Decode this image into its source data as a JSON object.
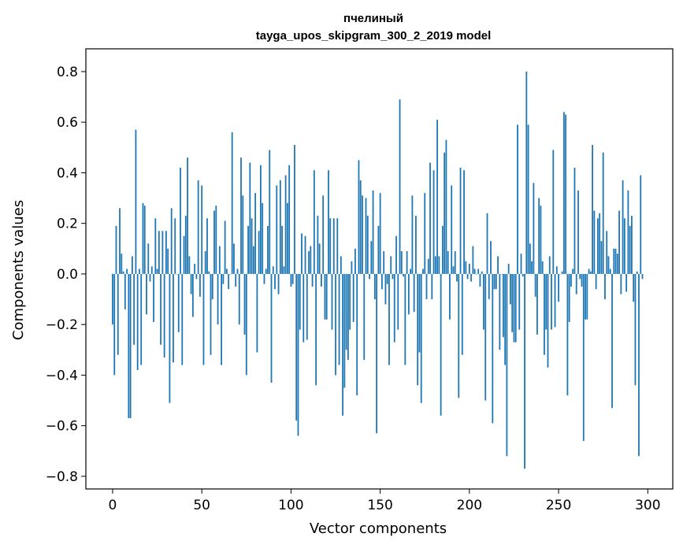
{
  "chart_data": {
    "type": "bar",
    "title_line1": "пчелиный",
    "title_line2": "tayga_upos_skipgram_300_2_2019 model",
    "xlabel": "Vector components",
    "ylabel": "Components values",
    "xlim": [
      -15,
      314
    ],
    "ylim": [
      -0.85,
      0.89
    ],
    "xticks": [
      0,
      50,
      100,
      150,
      200,
      250,
      300
    ],
    "xtick_labels": [
      "0",
      "50",
      "100",
      "150",
      "200",
      "250",
      "300"
    ],
    "yticks": [
      -0.8,
      -0.6,
      -0.4,
      -0.2,
      0.0,
      0.2,
      0.4,
      0.6,
      0.8
    ],
    "ytick_labels": [
      "−0.8",
      "−0.6",
      "−0.4",
      "−0.2",
      "0.0",
      "0.2",
      "0.4",
      "0.6",
      "0.8"
    ],
    "bar_color": "#1f77b4",
    "values": [
      -0.2,
      -0.4,
      0.19,
      -0.32,
      0.26,
      0.08,
      0.01,
      -0.14,
      0.02,
      -0.57,
      -0.57,
      0.07,
      -0.28,
      0.57,
      -0.38,
      0.02,
      -0.36,
      0.28,
      0.27,
      -0.16,
      0.12,
      -0.03,
      0.03,
      -0.19,
      0.22,
      0.02,
      0.17,
      -0.28,
      0.17,
      -0.33,
      0.17,
      0.1,
      -0.51,
      0.26,
      -0.35,
      0.22,
      0.0,
      -0.23,
      0.42,
      -0.36,
      0.15,
      0.23,
      0.46,
      0.07,
      -0.08,
      -0.17,
      0.04,
      -0.02,
      0.37,
      -0.09,
      0.35,
      -0.36,
      0.09,
      0.22,
      0.01,
      -0.32,
      -0.1,
      0.25,
      0.27,
      -0.2,
      0.11,
      -0.36,
      -0.04,
      0.21,
      0.02,
      -0.06,
      0.0,
      0.56,
      0.12,
      -0.05,
      0.02,
      -0.2,
      0.46,
      0.31,
      -0.24,
      -0.4,
      0.19,
      0.44,
      0.22,
      0.11,
      0.32,
      -0.31,
      0.17,
      0.43,
      0.28,
      -0.04,
      0.02,
      0.19,
      0.49,
      -0.43,
      0.03,
      -0.06,
      0.35,
      -0.08,
      0.37,
      0.19,
      0.03,
      0.39,
      0.28,
      0.43,
      -0.05,
      -0.04,
      0.51,
      -0.58,
      -0.64,
      -0.22,
      0.16,
      -0.27,
      0.15,
      -0.26,
      0.09,
      0.11,
      -0.05,
      0.41,
      -0.44,
      0.23,
      0.12,
      -0.05,
      0.31,
      -0.18,
      -0.18,
      0.41,
      0.22,
      -0.22,
      0.22,
      -0.4,
      0.22,
      -0.36,
      0.07,
      -0.56,
      -0.45,
      -0.3,
      -0.34,
      -0.22,
      0.05,
      -0.19,
      0.1,
      -0.48,
      0.45,
      0.37,
      0.31,
      -0.34,
      0.3,
      0.23,
      -0.02,
      0.13,
      0.33,
      -0.1,
      -0.63,
      0.19,
      0.32,
      -0.06,
      0.09,
      -0.12,
      -0.04,
      -0.36,
      0.07,
      -0.02,
      -0.27,
      0.15,
      -0.22,
      0.69,
      0.09,
      -0.01,
      -0.36,
      0.09,
      -0.16,
      0.02,
      0.31,
      -0.15,
      0.23,
      -0.44,
      -0.31,
      -0.51,
      0.02,
      0.32,
      -0.1,
      0.06,
      0.44,
      -0.1,
      0.41,
      0.07,
      0.61,
      0.07,
      -0.56,
      0.19,
      0.48,
      0.53,
      0.09,
      -0.18,
      0.35,
      0.03,
      0.09,
      -0.03,
      -0.49,
      0.42,
      -0.32,
      0.41,
      0.05,
      -0.02,
      0.04,
      -0.03,
      0.11,
      0.02,
      0.0,
      0.02,
      -0.05,
      0.01,
      -0.22,
      -0.5,
      0.24,
      -0.1,
      0.13,
      -0.59,
      -0.06,
      -0.06,
      0.07,
      -0.3,
      0.0,
      -0.25,
      -0.36,
      -0.72,
      0.04,
      -0.12,
      -0.23,
      -0.27,
      -0.27,
      0.59,
      -0.22,
      0.08,
      -0.01,
      -0.77,
      0.8,
      0.59,
      0.12,
      0.05,
      0.36,
      -0.09,
      -0.24,
      0.3,
      0.27,
      0.05,
      -0.32,
      -0.22,
      -0.37,
      0.07,
      -0.22,
      0.49,
      -0.21,
      0.03,
      -0.11,
      0.0,
      0.01,
      0.64,
      0.63,
      -0.48,
      -0.19,
      -0.05,
      0.02,
      0.42,
      -0.08,
      0.33,
      -0.02,
      -0.05,
      -0.66,
      -0.18,
      -0.18,
      0.02,
      0.01,
      0.51,
      0.25,
      -0.06,
      0.22,
      0.24,
      0.13,
      0.48,
      -0.1,
      0.17,
      0.07,
      0.02,
      -0.53,
      0.1,
      0.1,
      0.08,
      0.25,
      -0.08,
      0.37,
      0.22,
      -0.07,
      0.33,
      0.19,
      0.23,
      -0.11,
      -0.44,
      0.01,
      -0.72,
      0.39,
      -0.02
    ]
  }
}
